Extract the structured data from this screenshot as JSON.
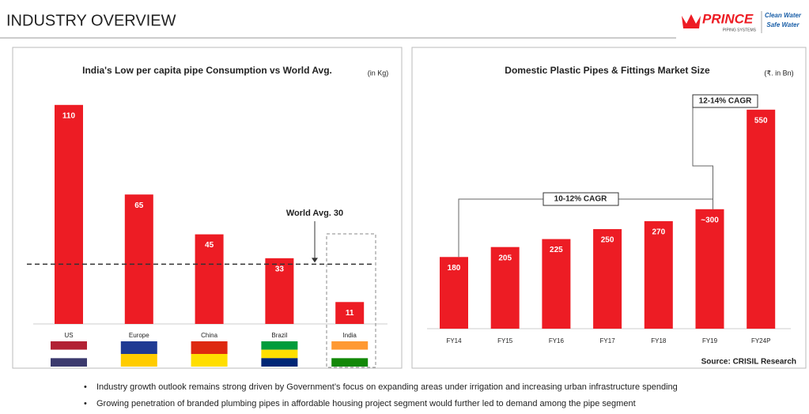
{
  "header": {
    "title": "INDUSTRY OVERVIEW",
    "logo": "PRINCE",
    "logo_sub": "PIPING SYSTEMS",
    "tagline": [
      "Clean Water",
      "Safe Water"
    ]
  },
  "chart_data": [
    {
      "type": "bar",
      "title": "India's Low per capita pipe Consumption vs World Avg.",
      "unit": "(in Kg)",
      "categories": [
        "US",
        "Europe",
        "China",
        "Brazil",
        "India"
      ],
      "values": [
        110,
        65,
        45,
        33,
        11
      ],
      "color": "#ed1c24",
      "reference_line": {
        "value": 30,
        "label": "World Avg. 30"
      }
    },
    {
      "type": "bar",
      "title": "Domestic Plastic Pipes & Fittings Market Size",
      "unit": "(₹. in Bn)",
      "categories": [
        "FY14",
        "FY15",
        "FY16",
        "FY17",
        "FY18",
        "FY19",
        "FY24P"
      ],
      "values": [
        180,
        205,
        225,
        250,
        270,
        300,
        550
      ],
      "value_labels": [
        "180",
        "205",
        "225",
        "250",
        "270",
        "~300",
        "550"
      ],
      "color": "#ed1c24",
      "annotations": [
        "10-12% CAGR",
        "12-14% CAGR"
      ],
      "source": "Source: CRISIL Research"
    }
  ],
  "bullets": [
    "Industry growth outlook remains strong driven by Government’s focus on expanding areas under irrigation and increasing urban infrastructure spending",
    "Growing penetration of branded plumbing pipes in affordable housing project segment would further led to demand among the pipe segment"
  ]
}
